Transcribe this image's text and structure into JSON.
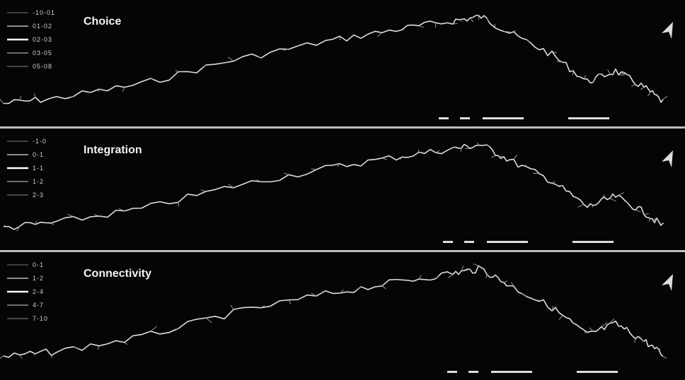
{
  "panels": [
    {
      "title": "Choice",
      "legend": [
        "-10-01",
        "01-02",
        "02-03",
        "03-05",
        "05-08"
      ]
    },
    {
      "title": "Integration",
      "legend": [
        "-1-0",
        "0-1",
        "1-1",
        "1-2",
        "2-3"
      ]
    },
    {
      "title": "Connectivity",
      "legend": [
        "0-1",
        "1-2",
        "2-4",
        "4-7",
        "7-10"
      ]
    }
  ]
}
